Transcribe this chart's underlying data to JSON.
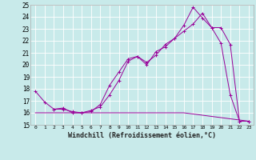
{
  "title": "",
  "xlabel": "Windchill (Refroidissement éolien,°C)",
  "ylabel": "",
  "bg_color": "#c8eaea",
  "grid_color": "#ffffff",
  "line_color": "#990099",
  "xlim": [
    -0.5,
    23.5
  ],
  "ylim": [
    15,
    25
  ],
  "xticks": [
    0,
    1,
    2,
    3,
    4,
    5,
    6,
    7,
    8,
    9,
    10,
    11,
    12,
    13,
    14,
    15,
    16,
    17,
    18,
    19,
    20,
    21,
    22,
    23
  ],
  "yticks": [
    15,
    16,
    17,
    18,
    19,
    20,
    21,
    22,
    23,
    24,
    25
  ],
  "line1_x": [
    0,
    1,
    2,
    3,
    4,
    5,
    6,
    7,
    8,
    9,
    10,
    11,
    12,
    13,
    14,
    15,
    16,
    17,
    18,
    19,
    20,
    21,
    22,
    23
  ],
  "line1_y": [
    17.8,
    16.9,
    16.3,
    16.3,
    16.1,
    16.0,
    16.1,
    16.7,
    18.3,
    19.4,
    20.5,
    20.7,
    20.2,
    20.8,
    21.7,
    22.2,
    23.3,
    24.8,
    23.9,
    23.1,
    21.8,
    17.5,
    15.3,
    15.3
  ],
  "line2_x": [
    2,
    3,
    4,
    5,
    6,
    7,
    8,
    9,
    10,
    11,
    12,
    13,
    14,
    15,
    16,
    17,
    18,
    19,
    20,
    21,
    22,
    23
  ],
  "line2_y": [
    16.3,
    16.4,
    16.0,
    16.0,
    16.2,
    16.5,
    17.5,
    18.7,
    20.3,
    20.7,
    20.0,
    21.1,
    21.5,
    22.2,
    22.8,
    23.4,
    24.3,
    23.1,
    23.1,
    21.7,
    15.3,
    15.3
  ],
  "line3_x": [
    0,
    1,
    2,
    3,
    4,
    5,
    6,
    7,
    8,
    9,
    10,
    11,
    12,
    13,
    14,
    15,
    16,
    17,
    18,
    19,
    20,
    21,
    22,
    23
  ],
  "line3_y": [
    16.0,
    16.0,
    16.0,
    16.0,
    16.0,
    16.0,
    16.0,
    16.0,
    16.0,
    16.0,
    16.0,
    16.0,
    16.0,
    16.0,
    16.0,
    16.0,
    16.0,
    15.9,
    15.8,
    15.7,
    15.6,
    15.5,
    15.4,
    15.3
  ]
}
